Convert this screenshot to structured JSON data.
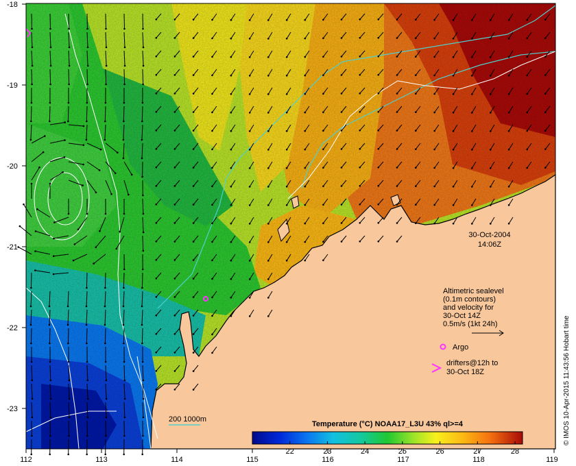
{
  "datetime": {
    "date": "30-Oct-2004",
    "time": "14:06Z"
  },
  "axes": {
    "x_ticks": [
      "112",
      "113",
      "114",
      "115",
      "116",
      "117",
      "118",
      "119"
    ],
    "y_ticks": [
      "-18",
      "-19",
      "-20",
      "-21",
      "-22",
      "-23"
    ],
    "lon_range": [
      112,
      119
    ],
    "lat_range": [
      -23.5,
      -17.9
    ]
  },
  "legend": {
    "sealevel_lines": [
      "Altimetric sealevel",
      "(0.1m contours)",
      "and velocity for",
      "30-Oct 14Z",
      "0.5m/s (1kt 24h)"
    ],
    "argo_label": "Argo",
    "drifters_lines": [
      "drifters@12h to",
      "30-Oct 18Z"
    ],
    "isobath_label": "200  1000m"
  },
  "colorbar": {
    "title": "Temperature (°C) NOAA17_L3U 43% ql>=4",
    "ticks": [
      "22",
      "23",
      "24",
      "25",
      "26",
      "27",
      "28"
    ],
    "range": [
      21,
      28.2
    ]
  },
  "credit": "© IMOS 10-Apr-2015 11:43:56 Hobart time",
  "colors": {
    "land": "#f8c89c",
    "arrow": "#000000",
    "contour": "#ffffff",
    "isobath": "#4fd0cc",
    "argo": "#ff33ff"
  }
}
